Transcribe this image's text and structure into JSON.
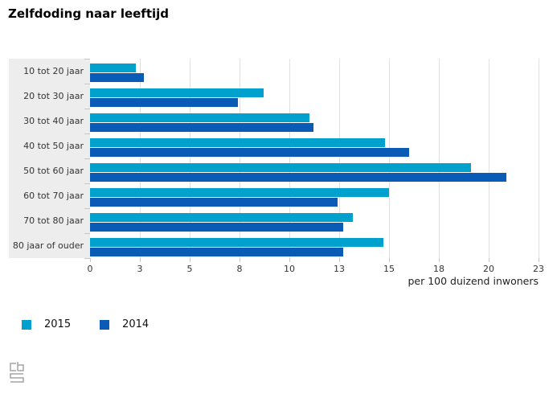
{
  "page": {
    "background": "#ffffff"
  },
  "chart_data": {
    "type": "bar",
    "orientation": "horizontal",
    "title": "Zelfdoding naar leeftijd",
    "xlabel": "per 100 duizend inwoners",
    "categories": [
      "10 tot 20 jaar",
      "20 tot 30 jaar",
      "30 tot 40 jaar",
      "40 tot 50 jaar",
      "50 tot 60 jaar",
      "60 tot 70 jaar",
      "70 tot 80 jaar",
      "80 jaar of ouder"
    ],
    "series": [
      {
        "name": "2015",
        "color": "#00a1cd",
        "values": [
          2.3,
          8.7,
          11.0,
          14.8,
          19.1,
          15.0,
          13.2,
          14.7
        ]
      },
      {
        "name": "2014",
        "color": "#0a5bb5",
        "values": [
          2.7,
          7.4,
          11.2,
          16.0,
          20.9,
          12.4,
          12.7,
          12.7
        ]
      }
    ],
    "xlim": [
      0,
      22.5
    ],
    "x_ticks": [
      0,
      2.5,
      5,
      7.5,
      10,
      12.5,
      15,
      17.5,
      20,
      22.5
    ],
    "x_tick_labels": [
      "0",
      "3",
      "5",
      "8",
      "10",
      "13",
      "15",
      "18",
      "20",
      "23"
    ],
    "grid": true,
    "legend_position": "bottom-left",
    "colors": {
      "panel_background": "#ededed",
      "gridline": "#e0e0e0",
      "tick": "#c6c6c6"
    }
  },
  "legend": {
    "items": [
      {
        "label": "2015",
        "color": "#00a1cd"
      },
      {
        "label": "2014",
        "color": "#0a5bb5"
      }
    ]
  },
  "footer": {
    "logo_name": "cbs-logo"
  }
}
